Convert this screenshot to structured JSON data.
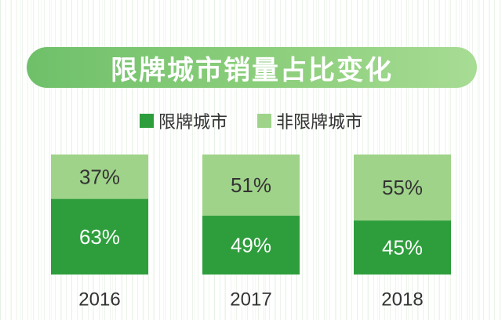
{
  "title": "限牌城市销量占比变化",
  "legend": {
    "items": [
      {
        "label": "限牌城市",
        "color": "#2e9e3c"
      },
      {
        "label": "非限牌城市",
        "color": "#9fd389"
      }
    ]
  },
  "chart_data": {
    "type": "bar",
    "stacked": true,
    "categories": [
      "2016",
      "2017",
      "2018"
    ],
    "series": [
      {
        "name": "限牌城市",
        "values": [
          63,
          49,
          45
        ],
        "labels": [
          "63%",
          "49%",
          "45%"
        ],
        "color": "#2e9e3c"
      },
      {
        "name": "非限牌城市",
        "values": [
          37,
          51,
          55
        ],
        "labels": [
          "37%",
          "51%",
          "55%"
        ],
        "color": "#9fd389"
      }
    ],
    "ylim": [
      0,
      100
    ],
    "grid": false,
    "legend_position": "top-center"
  }
}
